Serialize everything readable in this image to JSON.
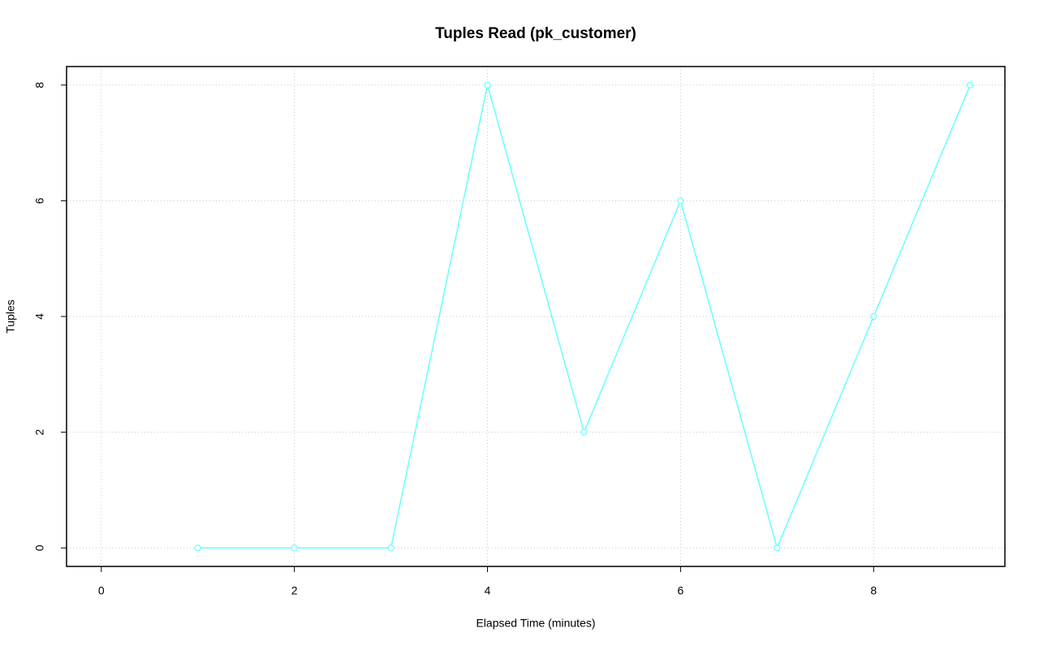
{
  "chart_data": {
    "type": "line",
    "title": "Tuples Read (pk_customer)",
    "x_label": "Elapsed Time (minutes)",
    "y_label": "Tuples",
    "x": [
      1,
      2,
      3,
      4,
      5,
      6,
      7,
      8,
      9
    ],
    "values": [
      0,
      0,
      0,
      8,
      2,
      6,
      0,
      4,
      8
    ],
    "color": "#66ffff",
    "xlim": [
      -0.36,
      9.36
    ],
    "xticks": [
      0,
      2,
      4,
      6,
      8
    ],
    "ylim": [
      -0.32,
      8.32
    ],
    "yticks": [
      0,
      2,
      4,
      6,
      8
    ],
    "grid": true
  }
}
